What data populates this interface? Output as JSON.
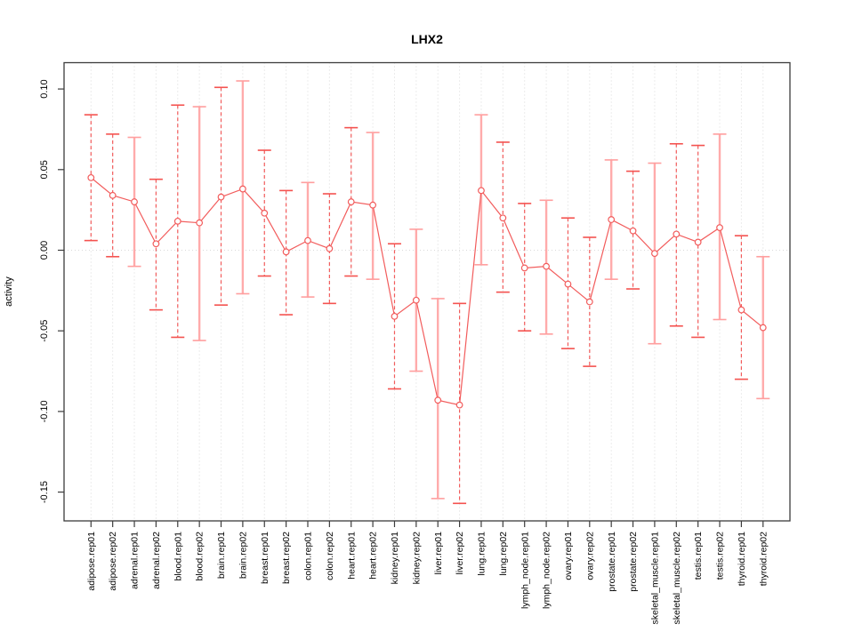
{
  "chart_data": {
    "type": "line",
    "subtype": "points-with-error-bars",
    "title": "LHX2",
    "xlabel": "",
    "ylabel": "activity",
    "ylim": [
      -0.168,
      0.116
    ],
    "yticks": [
      0.1,
      0.05,
      0.0,
      -0.05,
      -0.1,
      -0.15
    ],
    "ytick_labels": [
      "0.10",
      "0.05",
      "0.00",
      "-0.05",
      "-0.10",
      "-0.15"
    ],
    "grid": "vertical dotted line at every category; dotted horizontal line at zero",
    "legend": "none",
    "categories": [
      "adipose.rep01",
      "adipose.rep02",
      "adrenal.rep01",
      "adrenal.rep02",
      "blood.rep01",
      "blood.rep02",
      "brain.rep01",
      "brain.rep02",
      "breast.rep01",
      "breast.rep02",
      "colon.rep01",
      "colon.rep02",
      "heart.rep01",
      "heart.rep02",
      "kidney.rep01",
      "kidney.rep02",
      "liver.rep01",
      "liver.rep02",
      "lung.rep01",
      "lung.rep02",
      "lymph_node.rep01",
      "lymph_node.rep02",
      "ovary.rep01",
      "ovary.rep02",
      "prostate.rep01",
      "prostate.rep02",
      "skeletal_muscle.rep01",
      "skeletal_muscle.rep02",
      "testis.rep01",
      "testis.rep02",
      "thyroid.rep01",
      "thyroid.rep02"
    ],
    "points": [
      {
        "label": "adipose.rep01",
        "value": 0.045,
        "lo": 0.006,
        "hi": 0.084,
        "bar_style": "dashed"
      },
      {
        "label": "adipose.rep02",
        "value": 0.034,
        "lo": -0.004,
        "hi": 0.072,
        "bar_style": "dashed"
      },
      {
        "label": "adrenal.rep01",
        "value": 0.03,
        "lo": -0.01,
        "hi": 0.07,
        "bar_style": "solid"
      },
      {
        "label": "adrenal.rep02",
        "value": 0.004,
        "lo": -0.037,
        "hi": 0.044,
        "bar_style": "dashed"
      },
      {
        "label": "blood.rep01",
        "value": 0.018,
        "lo": -0.054,
        "hi": 0.09,
        "bar_style": "dashed"
      },
      {
        "label": "blood.rep02",
        "value": 0.017,
        "lo": -0.056,
        "hi": 0.089,
        "bar_style": "solid"
      },
      {
        "label": "brain.rep01",
        "value": 0.033,
        "lo": -0.034,
        "hi": 0.101,
        "bar_style": "dashed"
      },
      {
        "label": "brain.rep02",
        "value": 0.038,
        "lo": -0.027,
        "hi": 0.105,
        "bar_style": "solid"
      },
      {
        "label": "breast.rep01",
        "value": 0.023,
        "lo": -0.016,
        "hi": 0.062,
        "bar_style": "dashed"
      },
      {
        "label": "breast.rep02",
        "value": -0.001,
        "lo": -0.04,
        "hi": 0.037,
        "bar_style": "dashed"
      },
      {
        "label": "colon.rep01",
        "value": 0.006,
        "lo": -0.029,
        "hi": 0.042,
        "bar_style": "solid"
      },
      {
        "label": "colon.rep02",
        "value": 0.001,
        "lo": -0.033,
        "hi": 0.035,
        "bar_style": "dashed"
      },
      {
        "label": "heart.rep01",
        "value": 0.03,
        "lo": -0.016,
        "hi": 0.076,
        "bar_style": "dashed"
      },
      {
        "label": "heart.rep02",
        "value": 0.028,
        "lo": -0.018,
        "hi": 0.073,
        "bar_style": "solid"
      },
      {
        "label": "kidney.rep01",
        "value": -0.041,
        "lo": -0.086,
        "hi": 0.004,
        "bar_style": "dashed"
      },
      {
        "label": "kidney.rep02",
        "value": -0.031,
        "lo": -0.075,
        "hi": 0.013,
        "bar_style": "solid"
      },
      {
        "label": "liver.rep01",
        "value": -0.093,
        "lo": -0.154,
        "hi": -0.03,
        "bar_style": "solid"
      },
      {
        "label": "liver.rep02",
        "value": -0.096,
        "lo": -0.157,
        "hi": -0.033,
        "bar_style": "dashed"
      },
      {
        "label": "lung.rep01",
        "value": 0.037,
        "lo": -0.009,
        "hi": 0.084,
        "bar_style": "solid"
      },
      {
        "label": "lung.rep02",
        "value": 0.02,
        "lo": -0.026,
        "hi": 0.067,
        "bar_style": "dashed"
      },
      {
        "label": "lymph_node.rep01",
        "value": -0.011,
        "lo": -0.05,
        "hi": 0.029,
        "bar_style": "dashed"
      },
      {
        "label": "lymph_node.rep02",
        "value": -0.01,
        "lo": -0.052,
        "hi": 0.031,
        "bar_style": "solid"
      },
      {
        "label": "ovary.rep01",
        "value": -0.021,
        "lo": -0.061,
        "hi": 0.02,
        "bar_style": "dashed"
      },
      {
        "label": "ovary.rep02",
        "value": -0.032,
        "lo": -0.072,
        "hi": 0.008,
        "bar_style": "dashed"
      },
      {
        "label": "prostate.rep01",
        "value": 0.019,
        "lo": -0.018,
        "hi": 0.056,
        "bar_style": "solid"
      },
      {
        "label": "prostate.rep02",
        "value": 0.012,
        "lo": -0.024,
        "hi": 0.049,
        "bar_style": "dashed"
      },
      {
        "label": "skeletal_muscle.rep01",
        "value": -0.002,
        "lo": -0.058,
        "hi": 0.054,
        "bar_style": "solid"
      },
      {
        "label": "skeletal_muscle.rep02",
        "value": 0.01,
        "lo": -0.047,
        "hi": 0.066,
        "bar_style": "dashed"
      },
      {
        "label": "testis.rep01",
        "value": 0.005,
        "lo": -0.054,
        "hi": 0.065,
        "bar_style": "dashed"
      },
      {
        "label": "testis.rep02",
        "value": 0.014,
        "lo": -0.043,
        "hi": 0.072,
        "bar_style": "solid"
      },
      {
        "label": "thyroid.rep01",
        "value": -0.037,
        "lo": -0.08,
        "hi": 0.009,
        "bar_style": "dashed"
      },
      {
        "label": "thyroid.rep02",
        "value": -0.048,
        "lo": -0.092,
        "hi": -0.004,
        "bar_style": "solid"
      }
    ],
    "colors": {
      "point_stroke": "#f25c5c",
      "connect_line": "#f25c5c",
      "errorbar_dashed": "#f25c5c",
      "errorbar_solid": "#ffabab",
      "cap_dashed": "#f4524f",
      "cap_solid": "#ff9e9e",
      "grid": "#d9d9d9",
      "axis": "#3c3c3c"
    }
  }
}
